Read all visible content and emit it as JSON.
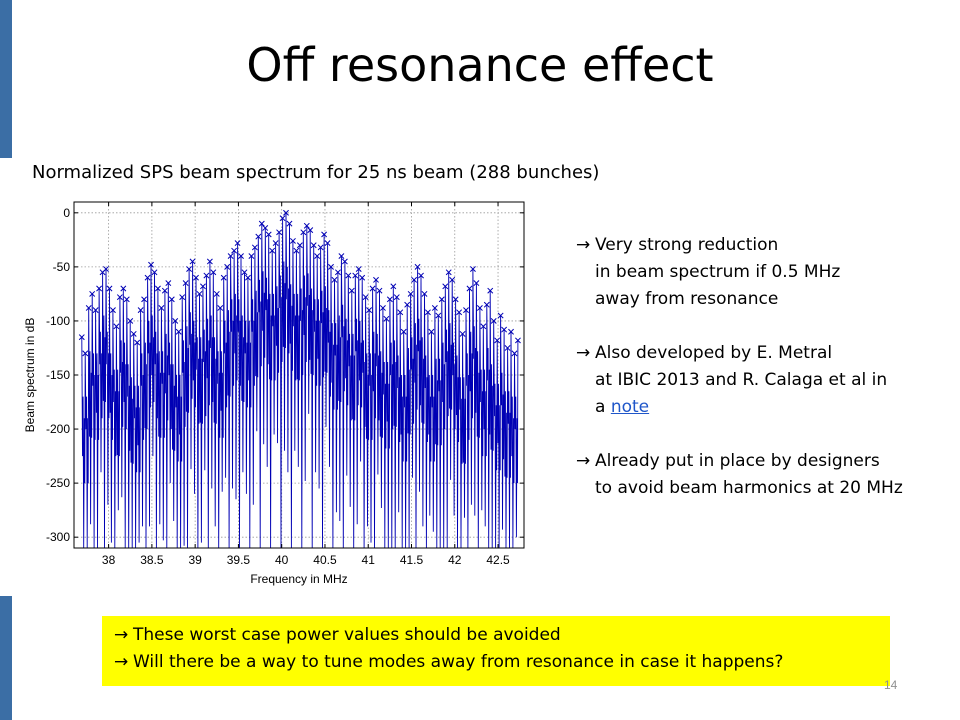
{
  "slide": {
    "title": "Off resonance effect",
    "subtitle": "Normalized SPS beam spectrum for 25 ns beam (288 bunches)",
    "page_number": "14",
    "accent_color": "#3b6ea5",
    "bullets": [
      {
        "arrow": "→",
        "lines": [
          "Very strong reduction",
          "in beam spectrum if 0.5 MHz",
          "away from resonance"
        ]
      },
      {
        "arrow": "→",
        "lines": [
          "Also developed by E. Metral",
          "at IBIC 2013 and R. Calaga et al in"
        ],
        "last_prefix": "a ",
        "link_text": "note"
      },
      {
        "arrow": "→",
        "lines": [
          "Already put in place by designers",
          "to avoid beam harmonics at 20 MHz"
        ]
      }
    ],
    "callout": {
      "background": "#ffff00",
      "lines": [
        {
          "arrow": "→",
          "text": "These worst case power values should be avoided"
        },
        {
          "arrow": "→",
          "text": "Will there be a way to tune modes away from resonance in case it happens?"
        }
      ]
    }
  },
  "chart_data": {
    "type": "line",
    "xlabel": "Frequency in MHz",
    "ylabel": "Beam spectrum in dB",
    "xlim": [
      37.6,
      42.8
    ],
    "ylim": [
      -310,
      10
    ],
    "xticks": [
      38,
      38.5,
      39,
      39.5,
      40,
      40.5,
      41,
      41.5,
      42,
      42.5
    ],
    "xtick_labels": [
      "38",
      "38.5",
      "39",
      "39.5",
      "40",
      "40.5",
      "41",
      "41.5",
      "42",
      "42.5"
    ],
    "yticks": [
      0,
      -50,
      -100,
      -150,
      -200,
      -250,
      -300
    ],
    "ytick_labels": [
      "0",
      "-50",
      "-100",
      "-150",
      "-200",
      "-250",
      "-300"
    ],
    "grid": true,
    "line_color": "#0000b4",
    "marker": "x",
    "harmonics": {
      "x": [
        37.69,
        37.73,
        37.77,
        37.81,
        37.85,
        37.89,
        37.93,
        37.97,
        38.01,
        38.05,
        38.09,
        38.13,
        38.17,
        38.21,
        38.25,
        38.29,
        38.33,
        38.37,
        38.41,
        38.45,
        38.49,
        38.53,
        38.57,
        38.61,
        38.65,
        38.69,
        38.73,
        38.77,
        38.81,
        38.85,
        38.89,
        38.93,
        38.97,
        39.01,
        39.05,
        39.09,
        39.13,
        39.17,
        39.21,
        39.25,
        39.29,
        39.33,
        39.37,
        39.41,
        39.45,
        39.49,
        39.53,
        39.57,
        39.61,
        39.65,
        39.69,
        39.73,
        39.77,
        39.81,
        39.85,
        39.89,
        39.93,
        39.97,
        40.01,
        40.05,
        40.09,
        40.13,
        40.17,
        40.21,
        40.25,
        40.29,
        40.33,
        40.37,
        40.41,
        40.45,
        40.49,
        40.53,
        40.57,
        40.61,
        40.65,
        40.69,
        40.73,
        40.77,
        40.81,
        40.85,
        40.89,
        40.93,
        40.97,
        41.01,
        41.05,
        41.09,
        41.13,
        41.17,
        41.21,
        41.25,
        41.29,
        41.33,
        41.37,
        41.41,
        41.45,
        41.49,
        41.53,
        41.57,
        41.61,
        41.65,
        41.69,
        41.73,
        41.77,
        41.81,
        41.85,
        41.89,
        41.93,
        41.97,
        42.01,
        42.05,
        42.09,
        42.13,
        42.17,
        42.21,
        42.25,
        42.29,
        42.33,
        42.37,
        42.41,
        42.45,
        42.49,
        42.53,
        42.57,
        42.61,
        42.65,
        42.69,
        42.73
      ],
      "y": [
        -115,
        -130,
        -88,
        -75,
        -90,
        -70,
        -55,
        -52,
        -70,
        -90,
        -105,
        -78,
        -70,
        -80,
        -100,
        -112,
        -120,
        -90,
        -80,
        -60,
        -48,
        -55,
        -70,
        -88,
        -72,
        -65,
        -80,
        -100,
        -110,
        -78,
        -65,
        -52,
        -45,
        -60,
        -75,
        -68,
        -58,
        -45,
        -55,
        -75,
        -88,
        -60,
        -50,
        -40,
        -35,
        -28,
        -40,
        -55,
        -60,
        -40,
        -32,
        -22,
        -10,
        -14,
        -20,
        -35,
        -28,
        -18,
        -5,
        0,
        -10,
        -26,
        -35,
        -30,
        -18,
        -12,
        -16,
        -30,
        -40,
        -32,
        -20,
        -28,
        -50,
        -62,
        -55,
        -40,
        -45,
        -58,
        -72,
        -58,
        -52,
        -60,
        -78,
        -90,
        -70,
        -62,
        -72,
        -88,
        -98,
        -80,
        -68,
        -78,
        -92,
        -110,
        -85,
        -75,
        -62,
        -50,
        -58,
        -75,
        -92,
        -110,
        -88,
        -95,
        -80,
        -68,
        -55,
        -62,
        -80,
        -92,
        -112,
        -90,
        -70,
        -52,
        -65,
        -88,
        -105,
        -85,
        -72,
        -100,
        -118,
        -95,
        -108,
        -125,
        -110,
        -130,
        -118
      ]
    }
  }
}
